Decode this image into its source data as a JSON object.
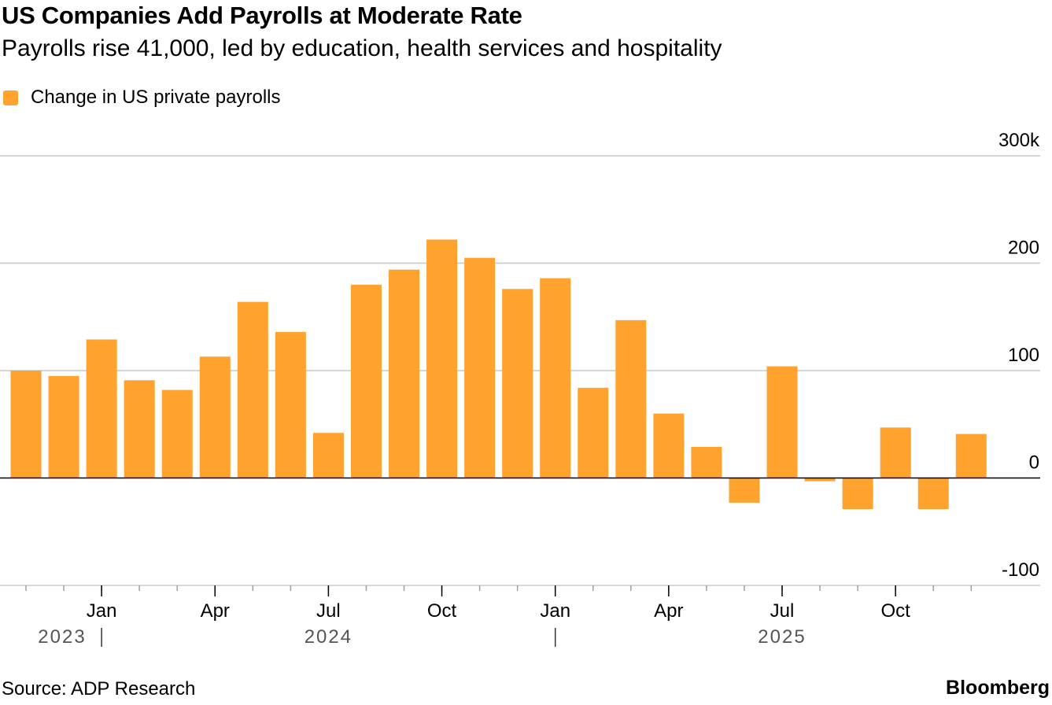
{
  "title": "US Companies Add Payrolls at Moderate Rate",
  "subtitle": "Payrolls rise 41,000, led by education, health services and hospitality",
  "legend": {
    "label": "Change in US private payrolls"
  },
  "source": "Source: ADP Research",
  "brand": "Bloomberg",
  "colors": {
    "bar": "#FFA22E",
    "grid": "#C8C8C8",
    "zero": "#000000",
    "text": "#000000",
    "year_text": "#555555"
  },
  "chart_data": {
    "type": "bar",
    "series": [
      {
        "name": "Change in US private payrolls",
        "x": [
          "2023-11",
          "2023-12",
          "2024-01",
          "2024-02",
          "2024-03",
          "2024-04",
          "2024-05",
          "2024-06",
          "2024-07",
          "2024-08",
          "2024-09",
          "2024-10",
          "2024-11",
          "2024-12",
          "2025-01",
          "2025-02",
          "2025-03",
          "2025-04",
          "2025-05",
          "2025-06",
          "2025-07",
          "2025-08",
          "2025-09",
          "2025-10",
          "2025-11",
          "2025-12"
        ],
        "values": [
          100,
          95,
          129,
          91,
          82,
          113,
          164,
          136,
          42,
          180,
          194,
          222,
          205,
          176,
          186,
          84,
          147,
          60,
          29,
          -23,
          104,
          -3,
          -29,
          47,
          -29,
          41
        ]
      }
    ],
    "ylim": [
      -100,
      300
    ],
    "yticks": [
      "300k",
      "200",
      "100",
      "0",
      "-100"
    ],
    "ytick_values": [
      300,
      200,
      100,
      0,
      -100
    ],
    "xtick_labels": [
      "Jan",
      "Apr",
      "Jul",
      "Oct",
      "Jan",
      "Apr",
      "Jul",
      "Oct"
    ],
    "xtick_months": [
      "2024-01",
      "2024-04",
      "2024-07",
      "2024-10",
      "2025-01",
      "2025-04",
      "2025-07",
      "2025-10"
    ],
    "year_labels": [
      "2023",
      "2024",
      "2025"
    ],
    "year_label_months": [
      "2023-11",
      "2024-07",
      "2025-07"
    ],
    "year_divider_months": [
      "2024-01",
      "2025-01"
    ],
    "grid": true,
    "legend_position": "top-left"
  }
}
